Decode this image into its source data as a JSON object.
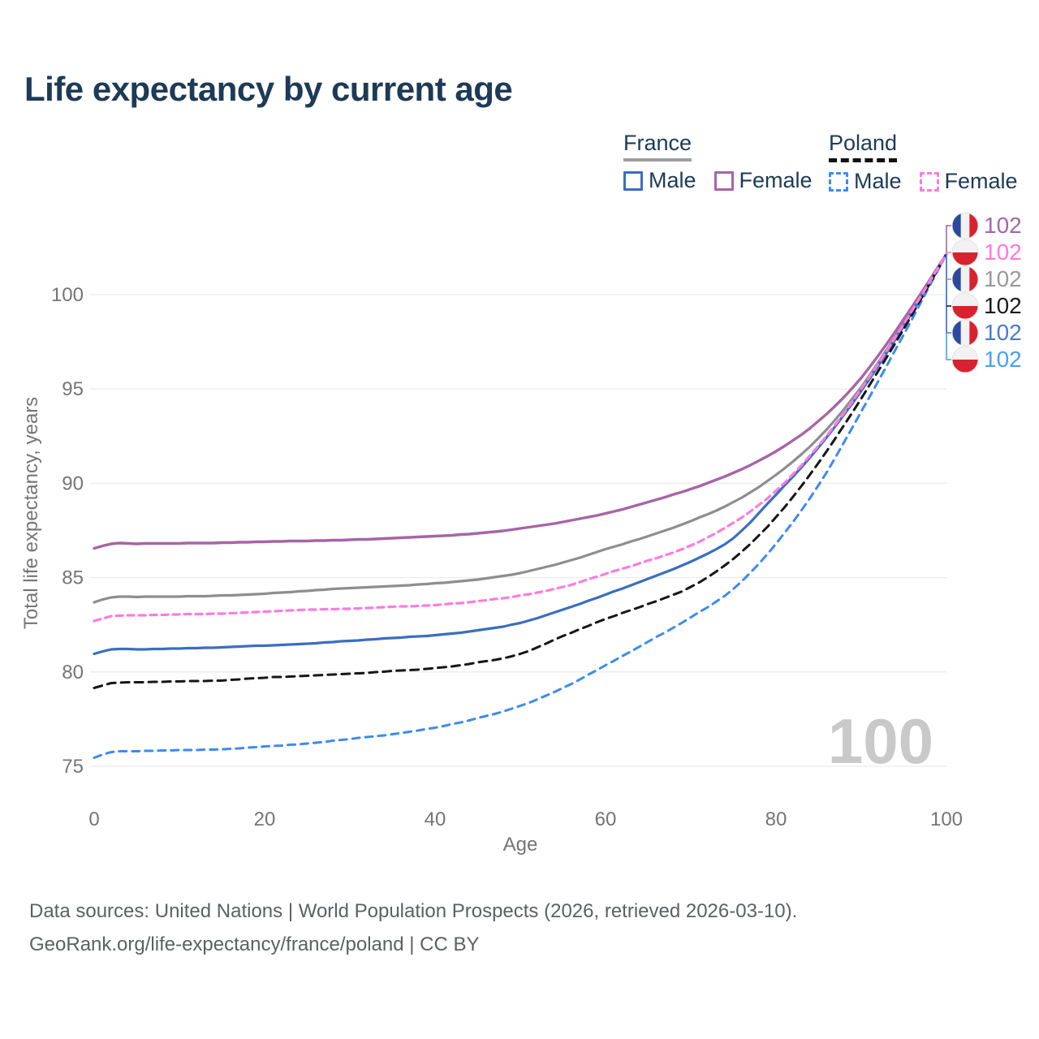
{
  "header": {
    "title": "Life expectancy by current age"
  },
  "legend": {
    "france": {
      "label": "France",
      "male": "Male",
      "female": "Female",
      "rule_color": "#9e9e9e",
      "rule_style": "solid"
    },
    "poland": {
      "label": "Poland",
      "male": "Male",
      "female": "Female",
      "rule_color": "#111111",
      "rule_style": "dashed"
    }
  },
  "watermark": "100",
  "footer": {
    "line1": "Data sources: United Nations | World Population Prospects (2026, retrieved 2026-03-10).",
    "line2": "GeoRank.org/life-expectancy/france/poland | CC BY"
  },
  "colors": {
    "title_text": "#1d3a57",
    "axis_text": "#757575",
    "gridline": "#ececec",
    "watermark": "#c9c9c9",
    "footer_text": "#5d6064"
  },
  "flags": {
    "france": [
      "#2b4a9c",
      "#f2f2f2",
      "#d8222f"
    ],
    "poland": [
      "#f2f2f2",
      "#d8222f"
    ]
  },
  "chart_data": {
    "type": "line",
    "title": "Life expectancy by current age",
    "xlabel": "Age",
    "ylabel": "Total life expectancy, years",
    "x_ticks": [
      0,
      20,
      40,
      60,
      80,
      100
    ],
    "y_ticks": [
      75,
      80,
      85,
      90,
      95,
      100
    ],
    "xlim": [
      0,
      100
    ],
    "ylim": [
      74,
      103.5
    ],
    "grid": "horizontal-only",
    "legend_position": "top-right",
    "ages": [
      0,
      2,
      5,
      10,
      15,
      20,
      25,
      30,
      35,
      40,
      45,
      50,
      55,
      60,
      65,
      70,
      75,
      80,
      85,
      90,
      95,
      100
    ],
    "series": [
      {
        "id": "france_total",
        "name": "France (both sexes)",
        "country": "france",
        "sex": "total",
        "style": "solid",
        "color": "#8e8e8e",
        "label_color": "#9a9a9a",
        "width": 3.2,
        "end_value": "102",
        "end_row": 2,
        "values": [
          83.7,
          83.95,
          83.98,
          84.0,
          84.05,
          84.15,
          84.3,
          84.45,
          84.55,
          84.7,
          84.9,
          85.25,
          85.8,
          86.5,
          87.2,
          88.0,
          89.0,
          90.45,
          92.4,
          95.1,
          98.5,
          102.15
        ]
      },
      {
        "id": "france_female",
        "name": "France Female",
        "country": "france",
        "sex": "female",
        "style": "solid",
        "color": "#a765a6",
        "label_color": "#a765a6",
        "width": 3.4,
        "end_value": "102",
        "end_row": 0,
        "values": [
          86.55,
          86.8,
          86.8,
          86.82,
          86.85,
          86.9,
          86.95,
          87.0,
          87.1,
          87.2,
          87.35,
          87.6,
          87.95,
          88.4,
          89.0,
          89.7,
          90.55,
          91.7,
          93.3,
          95.6,
          98.7,
          102.15
        ]
      },
      {
        "id": "france_male",
        "name": "France Male",
        "country": "france",
        "sex": "male",
        "style": "solid",
        "color": "#3a6ec1",
        "label_color": "#4b79cd",
        "width": 3.2,
        "end_value": "102",
        "end_row": 4,
        "values": [
          80.95,
          81.2,
          81.2,
          81.25,
          81.3,
          81.4,
          81.5,
          81.65,
          81.8,
          81.95,
          82.2,
          82.6,
          83.3,
          84.1,
          84.95,
          85.85,
          87.1,
          89.4,
          91.9,
          94.9,
          98.35,
          102.15
        ]
      },
      {
        "id": "poland_male",
        "name": "Poland Male",
        "country": "poland",
        "sex": "male",
        "style": "dashed",
        "dash": "9 7",
        "color": "#3d8bf2",
        "label_color": "#47a0f4",
        "width": 3,
        "end_value": "102",
        "end_row": 5,
        "values": [
          75.45,
          75.75,
          75.8,
          75.85,
          75.9,
          76.05,
          76.2,
          76.45,
          76.7,
          77.05,
          77.55,
          78.2,
          79.15,
          80.35,
          81.6,
          82.9,
          84.4,
          86.8,
          89.9,
          93.8,
          97.9,
          102.15
        ]
      },
      {
        "id": "poland_total",
        "name": "Poland (both sexes)",
        "country": "poland",
        "sex": "total",
        "style": "dashed",
        "dash": "10 7",
        "color": "#161616",
        "label_color": "#1b1b1b",
        "width": 3,
        "end_value": "102",
        "end_row": 3,
        "values": [
          79.15,
          79.4,
          79.45,
          79.5,
          79.55,
          79.7,
          79.8,
          79.9,
          80.05,
          80.2,
          80.5,
          80.95,
          81.9,
          82.8,
          83.6,
          84.5,
          86.0,
          88.2,
          91.1,
          94.5,
          98.2,
          102.15
        ]
      },
      {
        "id": "poland_female",
        "name": "Poland Female",
        "country": "poland",
        "sex": "female",
        "style": "dashed",
        "dash": "8 6",
        "color": "#fb7ce0",
        "label_color": "#ff78df",
        "width": 3.2,
        "end_value": "102",
        "end_row": 1,
        "values": [
          82.7,
          82.95,
          83.0,
          83.05,
          83.1,
          83.2,
          83.3,
          83.35,
          83.45,
          83.55,
          83.75,
          84.05,
          84.5,
          85.2,
          85.9,
          86.7,
          87.9,
          89.6,
          92.0,
          95.0,
          98.45,
          102.15
        ]
      }
    ]
  }
}
